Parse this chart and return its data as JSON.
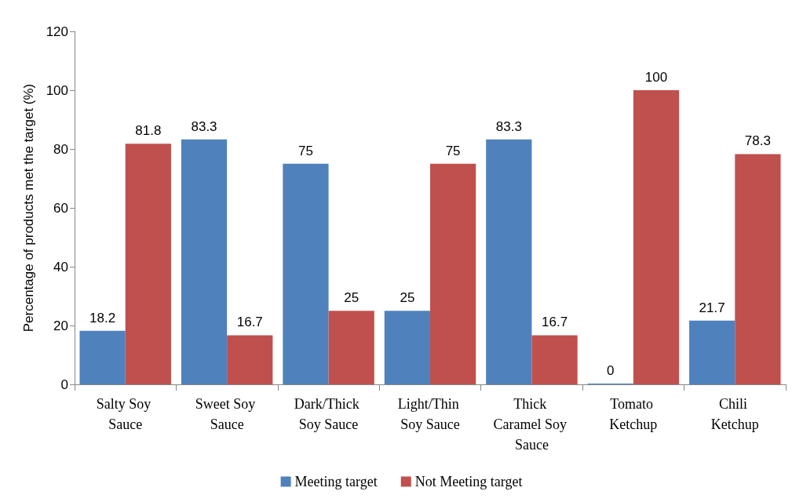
{
  "chart_data": {
    "type": "bar",
    "ylabel": "Percentage of products met the target (%)",
    "categories": [
      "Salty Soy Sauce",
      "Sweet Soy Sauce",
      "Dark/Thick Soy Sauce",
      "Light/Thin Soy Sauce",
      "Thick Caramel Soy Sauce",
      "Tomato Ketchup",
      "Chili Ketchup"
    ],
    "series": [
      {
        "name": "Meeting target",
        "color": "#4f81bd",
        "values": [
          18.2,
          83.3,
          75,
          25,
          83.3,
          0,
          21.7
        ]
      },
      {
        "name": "Not Meeting target",
        "color": "#c0504d",
        "values": [
          81.8,
          16.7,
          25,
          75,
          16.7,
          100,
          78.3
        ]
      }
    ],
    "ylim": [
      0,
      120
    ],
    "yticks": [
      0,
      20,
      40,
      60,
      80,
      100,
      120
    ],
    "grid": false,
    "legend": "bottom",
    "data_labels": true
  }
}
